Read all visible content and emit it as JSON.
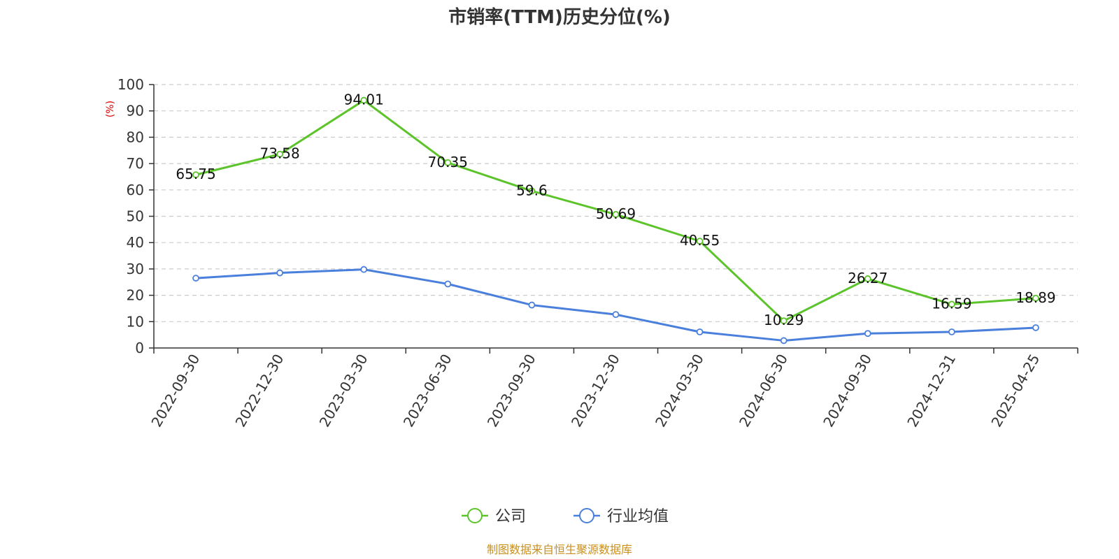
{
  "chart_data": {
    "type": "line",
    "title": "市销率(TTM)历史分位(%)",
    "ylabel": "(%)",
    "ylim": [
      0,
      100
    ],
    "yticks": [
      0,
      10,
      20,
      30,
      40,
      50,
      60,
      70,
      80,
      90,
      100
    ],
    "grid": true,
    "legend_position": "bottom",
    "categories": [
      "2022-09-30",
      "2022-12-30",
      "2023-03-30",
      "2023-06-30",
      "2023-09-30",
      "2023-12-30",
      "2024-03-30",
      "2024-06-30",
      "2024-09-30",
      "2024-12-31",
      "2025-04-25"
    ],
    "series": [
      {
        "name": "公司",
        "color": "#5cc42a",
        "values": [
          65.75,
          73.58,
          94.01,
          70.35,
          59.6,
          50.69,
          40.55,
          10.29,
          26.27,
          16.59,
          18.89
        ],
        "labels": [
          "65.75",
          "73.58",
          "94.01",
          "70.35",
          "59.6",
          "50.69",
          "40.55",
          "10.29",
          "26.27",
          "16.59",
          "18.89"
        ]
      },
      {
        "name": "行业均值",
        "color": "#4a7fdc",
        "values": [
          26.5,
          28.5,
          29.8,
          24.3,
          16.3,
          12.7,
          6.1,
          2.8,
          5.5,
          6.1,
          7.7
        ]
      }
    ]
  },
  "source": {
    "text": "制图数据来自恒生聚源数据库",
    "color": "#c8901e"
  }
}
